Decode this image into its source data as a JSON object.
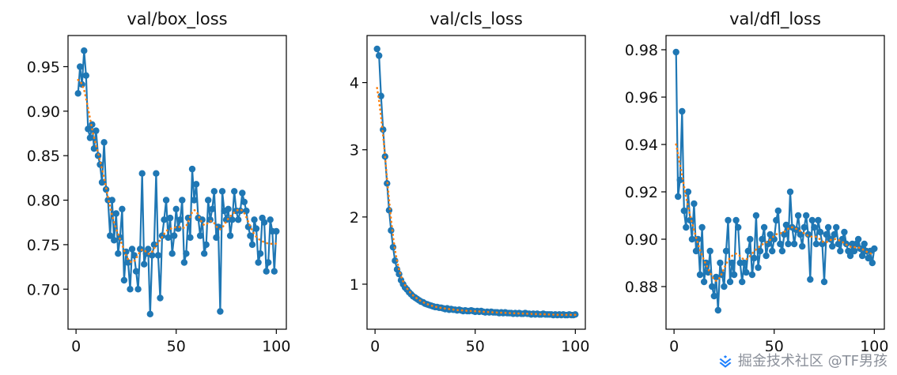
{
  "figure": {
    "background": "#ffffff",
    "accent_blue": "#1f77b4",
    "accent_orange": "#ff7f0e"
  },
  "watermark": {
    "text": "掘金技术社区 @TF男孩",
    "logo": "juejin-diamond-icon",
    "logo_color": "#1e80ff",
    "text_color": "#8a8f99"
  },
  "chart_data": [
    {
      "type": "line",
      "title": "val/box_loss",
      "xlabel": "",
      "ylabel": "",
      "x": "epoch 1..100",
      "xlim": [
        -4,
        105
      ],
      "ylim": [
        0.655,
        0.985
      ],
      "xticks": [
        0,
        50,
        100
      ],
      "xtick_labels": [
        "0",
        "50",
        "100"
      ],
      "yticks": [
        0.7,
        0.75,
        0.8,
        0.85,
        0.9,
        0.95
      ],
      "ytick_labels": [
        "0.70",
        "0.75",
        "0.80",
        "0.85",
        "0.90",
        "0.95"
      ],
      "grid": false,
      "legend": "none",
      "series": [
        {
          "name": "results",
          "color": "#1f77b4",
          "style": "solid-with-markers",
          "values": [
            0.92,
            0.95,
            0.93,
            0.968,
            0.94,
            0.88,
            0.87,
            0.885,
            0.858,
            0.878,
            0.85,
            0.84,
            0.82,
            0.865,
            0.812,
            0.8,
            0.76,
            0.8,
            0.755,
            0.785,
            0.74,
            0.758,
            0.79,
            0.71,
            0.742,
            0.73,
            0.7,
            0.745,
            0.738,
            0.72,
            0.7,
            0.745,
            0.83,
            0.728,
            0.74,
            0.745,
            0.672,
            0.738,
            0.75,
            0.83,
            0.738,
            0.69,
            0.76,
            0.778,
            0.8,
            0.758,
            0.78,
            0.74,
            0.76,
            0.79,
            0.768,
            0.778,
            0.8,
            0.73,
            0.74,
            0.78,
            0.758,
            0.835,
            0.8,
            0.818,
            0.78,
            0.76,
            0.778,
            0.74,
            0.75,
            0.8,
            0.778,
            0.79,
            0.81,
            0.758,
            0.77,
            0.675,
            0.81,
            0.788,
            0.778,
            0.79,
            0.76,
            0.778,
            0.81,
            0.788,
            0.778,
            0.788,
            0.808,
            0.798,
            0.788,
            0.77,
            0.76,
            0.75,
            0.778,
            0.768,
            0.73,
            0.74,
            0.78,
            0.775,
            0.72,
            0.73,
            0.778,
            0.765,
            0.72,
            0.765
          ]
        },
        {
          "name": "smooth",
          "color": "#ff7f0e",
          "style": "dotted",
          "derived_from": "results",
          "sigma": 2.5
        }
      ]
    },
    {
      "type": "line",
      "title": "val/cls_loss",
      "xlabel": "",
      "ylabel": "",
      "x": "epoch 1..100",
      "xlim": [
        -4,
        105
      ],
      "ylim": [
        0.33,
        4.7
      ],
      "xticks": [
        0,
        50,
        100
      ],
      "xtick_labels": [
        "0",
        "50",
        "100"
      ],
      "yticks": [
        1,
        2,
        3,
        4
      ],
      "ytick_labels": [
        "1",
        "2",
        "3",
        "4"
      ],
      "grid": false,
      "legend": "none",
      "series": [
        {
          "name": "results",
          "color": "#1f77b4",
          "style": "solid-with-markers",
          "values": [
            4.5,
            4.4,
            3.8,
            3.3,
            2.9,
            2.5,
            2.1,
            1.8,
            1.55,
            1.35,
            1.22,
            1.15,
            1.06,
            1.0,
            0.95,
            0.92,
            0.88,
            0.85,
            0.82,
            0.8,
            0.78,
            0.76,
            0.74,
            0.73,
            0.71,
            0.7,
            0.69,
            0.68,
            0.67,
            0.66,
            0.66,
            0.65,
            0.65,
            0.64,
            0.63,
            0.64,
            0.62,
            0.63,
            0.62,
            0.62,
            0.61,
            0.62,
            0.61,
            0.6,
            0.61,
            0.6,
            0.6,
            0.61,
            0.6,
            0.59,
            0.6,
            0.59,
            0.6,
            0.59,
            0.58,
            0.59,
            0.58,
            0.59,
            0.58,
            0.58,
            0.58,
            0.57,
            0.58,
            0.57,
            0.58,
            0.57,
            0.57,
            0.57,
            0.56,
            0.57,
            0.56,
            0.57,
            0.56,
            0.56,
            0.57,
            0.56,
            0.56,
            0.55,
            0.56,
            0.55,
            0.56,
            0.55,
            0.55,
            0.56,
            0.55,
            0.55,
            0.55,
            0.55,
            0.54,
            0.55,
            0.54,
            0.55,
            0.54,
            0.55,
            0.54,
            0.54,
            0.55,
            0.54,
            0.54,
            0.55
          ]
        },
        {
          "name": "smooth",
          "color": "#ff7f0e",
          "style": "dotted",
          "derived_from": "results",
          "sigma": 2.5
        }
      ]
    },
    {
      "type": "line",
      "title": "val/dfl_loss",
      "xlabel": "",
      "ylabel": "",
      "x": "epoch 1..100",
      "xlim": [
        -4,
        105
      ],
      "ylim": [
        0.862,
        0.986
      ],
      "xticks": [
        0,
        50,
        100
      ],
      "xtick_labels": [
        "0",
        "50",
        "100"
      ],
      "yticks": [
        0.88,
        0.9,
        0.92,
        0.94,
        0.96,
        0.98
      ],
      "ytick_labels": [
        "0.88",
        "0.90",
        "0.92",
        "0.94",
        "0.96",
        "0.98"
      ],
      "grid": false,
      "legend": "none",
      "series": [
        {
          "name": "results",
          "color": "#1f77b4",
          "style": "solid-with-markers",
          "values": [
            0.979,
            0.918,
            0.925,
            0.954,
            0.912,
            0.905,
            0.92,
            0.908,
            0.9,
            0.915,
            0.895,
            0.9,
            0.885,
            0.905,
            0.882,
            0.89,
            0.886,
            0.895,
            0.88,
            0.876,
            0.884,
            0.87,
            0.89,
            0.885,
            0.88,
            0.895,
            0.908,
            0.882,
            0.89,
            0.885,
            0.908,
            0.905,
            0.89,
            0.882,
            0.89,
            0.886,
            0.895,
            0.9,
            0.885,
            0.892,
            0.91,
            0.888,
            0.895,
            0.9,
            0.905,
            0.893,
            0.898,
            0.902,
            0.895,
            0.9,
            0.908,
            0.912,
            0.898,
            0.895,
            0.902,
            0.906,
            0.898,
            0.92,
            0.905,
            0.898,
            0.904,
            0.91,
            0.902,
            0.897,
            0.905,
            0.91,
            0.902,
            0.883,
            0.908,
            0.905,
            0.898,
            0.908,
            0.903,
            0.898,
            0.882,
            0.902,
            0.905,
            0.9,
            0.897,
            0.902,
            0.905,
            0.898,
            0.895,
            0.9,
            0.903,
            0.898,
            0.895,
            0.893,
            0.898,
            0.895,
            0.898,
            0.9,
            0.896,
            0.893,
            0.898,
            0.895,
            0.892,
            0.895,
            0.89,
            0.896
          ]
        },
        {
          "name": "smooth",
          "color": "#ff7f0e",
          "style": "dotted",
          "derived_from": "results",
          "sigma": 2.5
        }
      ]
    }
  ]
}
